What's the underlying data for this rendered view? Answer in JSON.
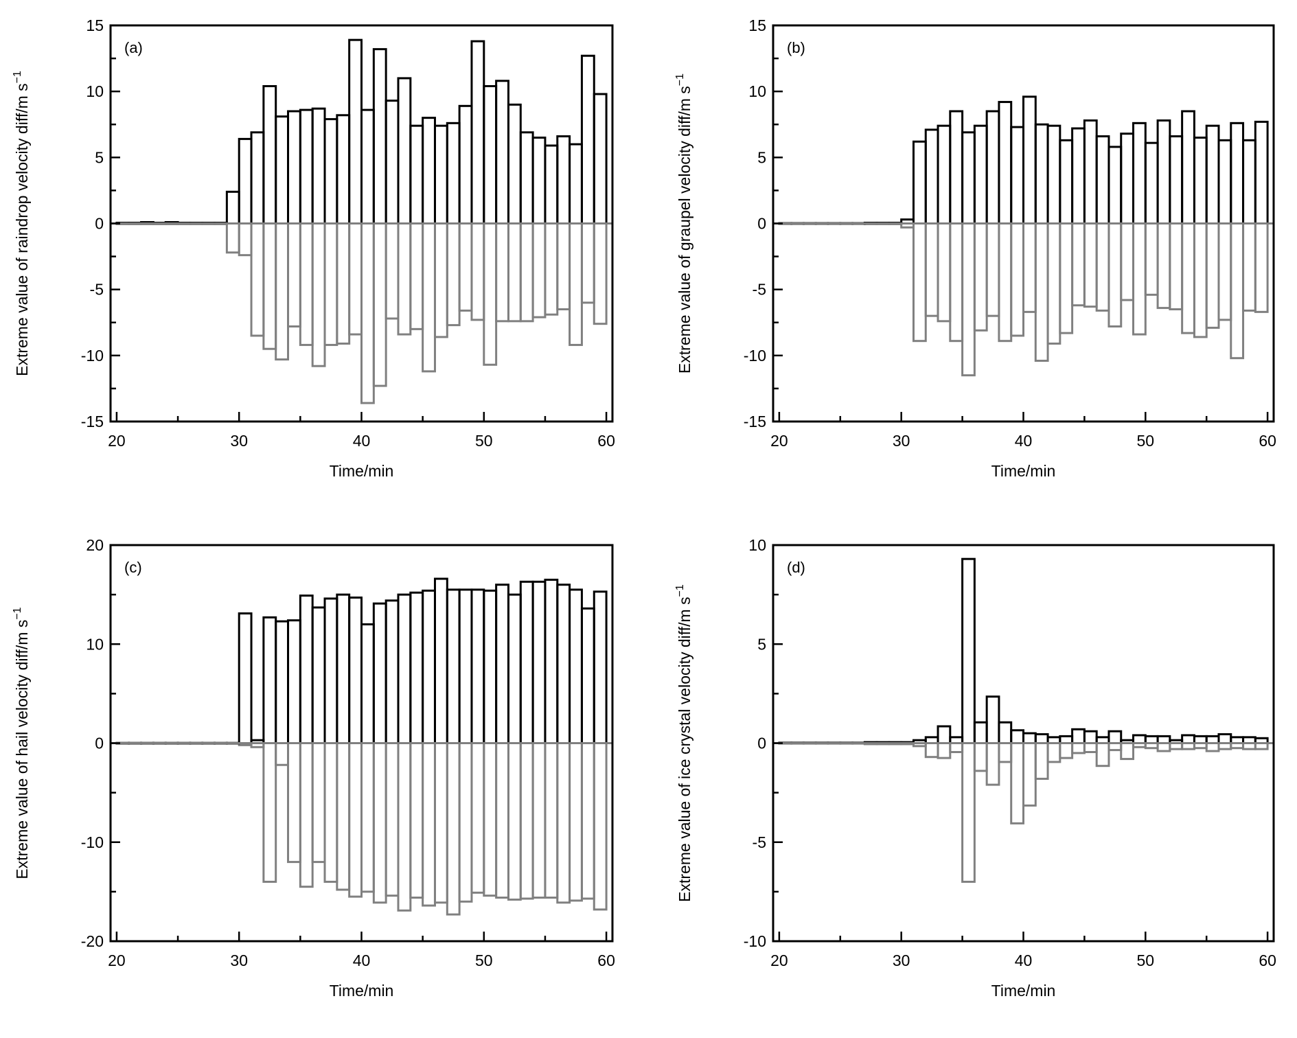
{
  "colors": {
    "positive": "#000000",
    "negative": "#808080",
    "axis": "#000000"
  },
  "chart_data": [
    {
      "type": "bar",
      "panel": "(a)",
      "xlabel": "Time/min",
      "ylabel_main": "Extreme value of raindrop velocity diff/m s",
      "ylabel_sup": "−1",
      "xlim": [
        19.5,
        60.5
      ],
      "ylim": [
        -15,
        15
      ],
      "xticks": [
        20,
        30,
        40,
        50,
        60
      ],
      "yticks": [
        -15,
        -10,
        -5,
        0,
        5,
        10,
        15
      ],
      "x": [
        21,
        22,
        23,
        24,
        25,
        26,
        27,
        28,
        29,
        30,
        31,
        32,
        33,
        34,
        35,
        36,
        37,
        38,
        39,
        40,
        41,
        42,
        43,
        44,
        45,
        46,
        47,
        48,
        49,
        50,
        51,
        52,
        53,
        54,
        55,
        56,
        57,
        58,
        59,
        60
      ],
      "series": [
        {
          "name": "",
          "values": [
            0.05,
            0.05,
            0.1,
            0.05,
            0.1,
            0.05,
            0.05,
            0.05,
            0.05,
            2.4,
            6.4,
            6.9,
            10.4,
            8.1,
            8.5,
            8.6,
            8.7,
            7.9,
            8.2,
            13.9,
            8.6,
            13.2,
            9.3,
            11.0,
            7.4,
            8.0,
            7.4,
            7.6,
            8.9,
            13.8,
            10.4,
            10.8,
            9.0,
            6.9,
            6.5,
            5.9,
            6.6,
            6.0,
            12.7,
            9.8
          ]
        },
        {
          "name": "",
          "values": [
            -0.05,
            -0.05,
            -0.05,
            -0.05,
            -0.05,
            -0.05,
            -0.05,
            -0.05,
            -0.05,
            -2.2,
            -2.4,
            -8.5,
            -9.5,
            -10.3,
            -7.8,
            -9.2,
            -10.8,
            -9.2,
            -9.1,
            -8.4,
            -13.6,
            -12.3,
            -7.2,
            -8.4,
            -8.0,
            -11.2,
            -8.6,
            -7.7,
            -6.6,
            -7.3,
            -10.7,
            -7.4,
            -7.4,
            -7.4,
            -7.1,
            -6.9,
            -6.5,
            -9.2,
            -6.0,
            -7.6
          ]
        }
      ]
    },
    {
      "type": "bar",
      "panel": "(b)",
      "xlabel": "Time/min",
      "ylabel_main": "Extreme value of graupel velocity diff/m s",
      "ylabel_sup": "−1",
      "xlim": [
        19.5,
        60.5
      ],
      "ylim": [
        -15,
        15
      ],
      "xticks": [
        20,
        30,
        40,
        50,
        60
      ],
      "yticks": [
        -15,
        -10,
        -5,
        0,
        5,
        10,
        15
      ],
      "x": [
        21,
        22,
        23,
        24,
        25,
        26,
        27,
        28,
        29,
        30,
        31,
        32,
        33,
        34,
        35,
        36,
        37,
        38,
        39,
        40,
        41,
        42,
        43,
        44,
        45,
        46,
        47,
        48,
        49,
        50,
        51,
        52,
        53,
        54,
        55,
        56,
        57,
        58,
        59,
        60
      ],
      "series": [
        {
          "name": "",
          "values": [
            0.02,
            0.02,
            0.02,
            0.02,
            0.02,
            0.02,
            0.02,
            0.05,
            0.05,
            0.05,
            0.3,
            6.2,
            7.1,
            7.4,
            8.5,
            6.9,
            7.4,
            8.5,
            9.2,
            7.3,
            9.6,
            7.5,
            7.4,
            6.3,
            7.2,
            7.8,
            6.6,
            5.8,
            6.8,
            7.6,
            6.1,
            7.8,
            6.6,
            8.5,
            6.5,
            7.4,
            6.3,
            7.6,
            6.3,
            7.7
          ]
        },
        {
          "name": "",
          "values": [
            -0.02,
            -0.02,
            -0.02,
            -0.02,
            -0.02,
            -0.02,
            -0.02,
            -0.05,
            -0.05,
            -0.05,
            -0.3,
            -8.9,
            -7.0,
            -7.4,
            -8.9,
            -11.5,
            -8.1,
            -7.0,
            -8.9,
            -8.5,
            -6.7,
            -10.4,
            -9.1,
            -8.3,
            -6.2,
            -6.3,
            -6.6,
            -7.8,
            -5.8,
            -8.4,
            -5.4,
            -6.4,
            -6.5,
            -8.3,
            -8.6,
            -7.9,
            -7.3,
            -10.2,
            -6.6,
            -6.7
          ]
        }
      ]
    },
    {
      "type": "bar",
      "panel": "(c)",
      "xlabel": "Time/min",
      "ylabel_main": "Extreme value of hail velocity diff/m s",
      "ylabel_sup": "−1",
      "xlim": [
        19.5,
        60.5
      ],
      "ylim": [
        -20,
        20
      ],
      "xticks": [
        20,
        30,
        40,
        50,
        60
      ],
      "yticks": [
        -20,
        -10,
        0,
        10,
        20
      ],
      "x": [
        21,
        22,
        23,
        24,
        25,
        26,
        27,
        28,
        29,
        30,
        31,
        32,
        33,
        34,
        35,
        36,
        37,
        38,
        39,
        40,
        41,
        42,
        43,
        44,
        45,
        46,
        47,
        48,
        49,
        50,
        51,
        52,
        53,
        54,
        55,
        56,
        57,
        58,
        59,
        60
      ],
      "series": [
        {
          "name": "",
          "values": [
            0.02,
            0.02,
            0.02,
            0.02,
            0.02,
            0.02,
            0.02,
            0.02,
            0.02,
            0.02,
            13.1,
            0.3,
            12.7,
            12.3,
            12.4,
            14.9,
            13.7,
            14.6,
            15.0,
            14.7,
            12.0,
            14.1,
            14.4,
            15.0,
            15.2,
            15.4,
            16.6,
            15.5,
            15.5,
            15.5,
            15.4,
            16.0,
            15.0,
            16.3,
            16.3,
            16.5,
            16.0,
            15.5,
            13.6,
            15.3
          ]
        },
        {
          "name": "",
          "values": [
            -0.02,
            -0.02,
            -0.02,
            -0.02,
            -0.02,
            -0.02,
            -0.02,
            -0.02,
            -0.02,
            -0.02,
            -0.2,
            -0.4,
            -14.0,
            -2.2,
            -12.0,
            -14.5,
            -12.0,
            -14.0,
            -14.8,
            -15.5,
            -15.0,
            -16.1,
            -15.4,
            -16.9,
            -15.6,
            -16.4,
            -16.1,
            -17.3,
            -16.0,
            -15.1,
            -15.4,
            -15.6,
            -15.8,
            -15.7,
            -15.6,
            -15.6,
            -16.1,
            -15.9,
            -15.7,
            -16.8
          ]
        }
      ]
    },
    {
      "type": "bar",
      "panel": "(d)",
      "xlabel": "Time/min",
      "ylabel_main": "Extreme value of ice crystal velocity diff/m s",
      "ylabel_sup": "−1",
      "xlim": [
        19.5,
        60.5
      ],
      "ylim": [
        -10,
        10
      ],
      "xticks": [
        20,
        30,
        40,
        50,
        60
      ],
      "yticks": [
        -10,
        -5,
        0,
        5,
        10
      ],
      "x": [
        21,
        22,
        23,
        24,
        25,
        26,
        27,
        28,
        29,
        30,
        31,
        32,
        33,
        34,
        35,
        36,
        37,
        38,
        39,
        40,
        41,
        42,
        43,
        44,
        45,
        46,
        47,
        48,
        49,
        50,
        51,
        52,
        53,
        54,
        55,
        56,
        57,
        58,
        59,
        60
      ],
      "series": [
        {
          "name": "",
          "values": [
            0.02,
            0.02,
            0.02,
            0.02,
            0.02,
            0.02,
            0.02,
            0.05,
            0.05,
            0.05,
            0.05,
            0.15,
            0.3,
            0.85,
            0.3,
            9.3,
            1.05,
            2.35,
            1.05,
            0.65,
            0.5,
            0.45,
            0.3,
            0.35,
            0.7,
            0.6,
            0.3,
            0.6,
            0.15,
            0.4,
            0.35,
            0.35,
            0.15,
            0.4,
            0.35,
            0.35,
            0.45,
            0.3,
            0.3,
            0.25
          ]
        },
        {
          "name": "",
          "values": [
            -0.02,
            -0.02,
            -0.02,
            -0.02,
            -0.02,
            -0.02,
            -0.02,
            -0.05,
            -0.05,
            -0.05,
            -0.05,
            -0.15,
            -0.7,
            -0.75,
            -0.45,
            -7.0,
            -1.4,
            -2.1,
            -0.95,
            -4.05,
            -3.15,
            -1.8,
            -0.95,
            -0.75,
            -0.5,
            -0.45,
            -1.15,
            -0.35,
            -0.8,
            -0.2,
            -0.25,
            -0.4,
            -0.3,
            -0.3,
            -0.25,
            -0.4,
            -0.3,
            -0.25,
            -0.3,
            -0.3
          ]
        }
      ]
    }
  ]
}
